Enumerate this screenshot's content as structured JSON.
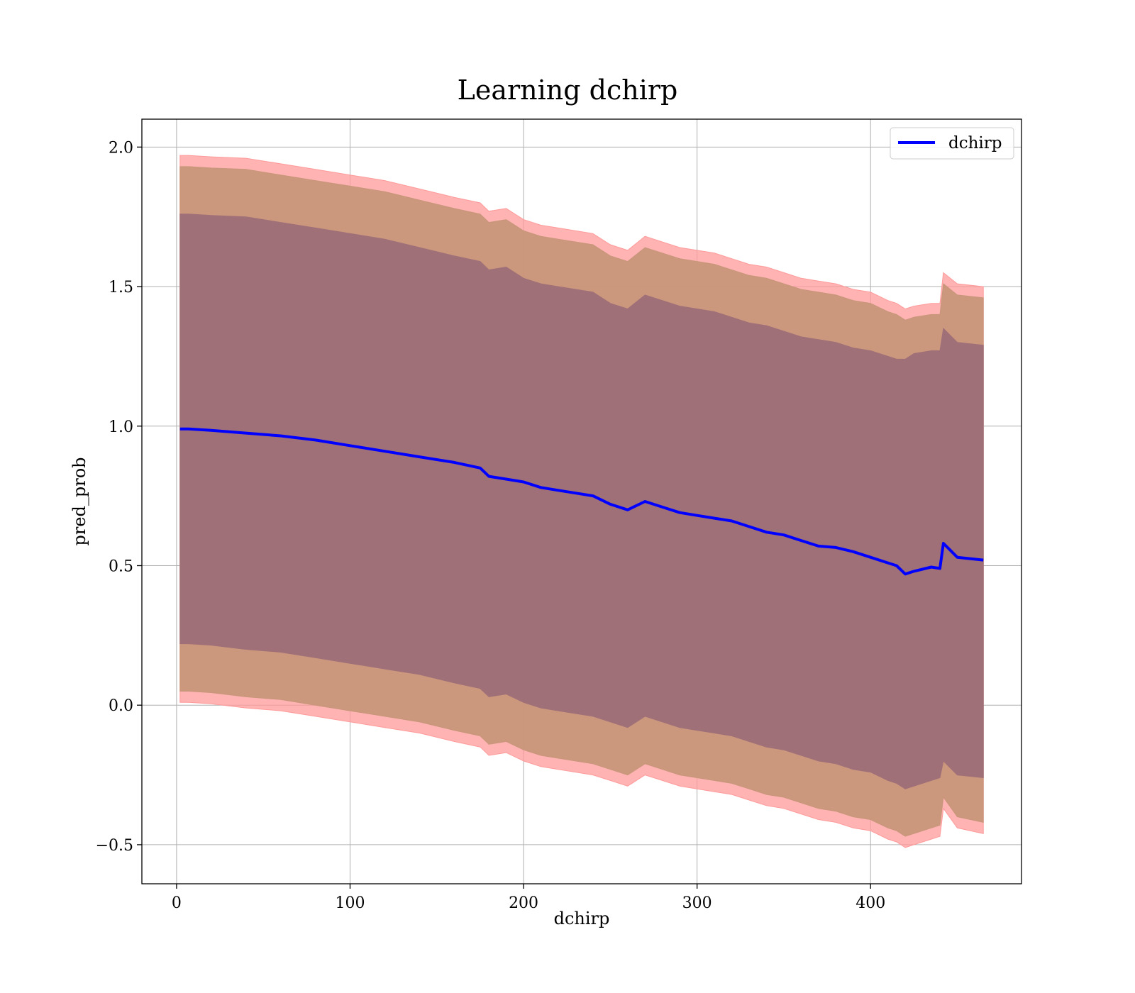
{
  "chart_data": {
    "type": "line",
    "title": "Learning dchirp",
    "xlabel": "dchirp",
    "ylabel": "pred_prob",
    "xlim": [
      -20,
      487
    ],
    "ylim": [
      -0.64,
      2.1
    ],
    "xticks": [
      0,
      100,
      200,
      300,
      400
    ],
    "xtick_labels": [
      "0",
      "100",
      "200",
      "300",
      "400"
    ],
    "yticks": [
      -0.5,
      0.0,
      0.5,
      1.0,
      1.5,
      2.0
    ],
    "ytick_labels": [
      "−0.5",
      "0.0",
      "0.5",
      "1.0",
      "1.5",
      "2.0"
    ],
    "grid": true,
    "legend": {
      "placement": "upper-right",
      "entries": [
        "dchirp"
      ]
    },
    "colors": {
      "line": "#0000ff",
      "band_outer": "#ff9a9a",
      "band_middle": "#c8967a",
      "band_inner": "#a07078"
    },
    "series": [
      {
        "name": "dchirp",
        "x": [
          2,
          7,
          20,
          40,
          60,
          80,
          100,
          120,
          140,
          160,
          175,
          180,
          190,
          200,
          210,
          220,
          230,
          240,
          250,
          260,
          270,
          280,
          290,
          300,
          310,
          320,
          330,
          340,
          350,
          360,
          370,
          380,
          390,
          400,
          410,
          415,
          420,
          425,
          435,
          440,
          442,
          450,
          465
        ],
        "y": [
          0.99,
          0.99,
          0.985,
          0.975,
          0.965,
          0.95,
          0.93,
          0.91,
          0.89,
          0.87,
          0.85,
          0.82,
          0.81,
          0.8,
          0.78,
          0.77,
          0.76,
          0.75,
          0.72,
          0.7,
          0.73,
          0.71,
          0.69,
          0.68,
          0.67,
          0.66,
          0.64,
          0.62,
          0.61,
          0.59,
          0.57,
          0.565,
          0.55,
          0.53,
          0.51,
          0.5,
          0.47,
          0.48,
          0.495,
          0.49,
          0.58,
          0.53,
          0.52
        ]
      }
    ],
    "bands": [
      {
        "name": "outer",
        "x": [
          2,
          7,
          20,
          40,
          60,
          80,
          100,
          120,
          140,
          160,
          175,
          180,
          190,
          200,
          210,
          220,
          230,
          240,
          250,
          260,
          270,
          280,
          290,
          300,
          310,
          320,
          330,
          340,
          350,
          360,
          370,
          380,
          390,
          400,
          410,
          415,
          420,
          425,
          435,
          440,
          442,
          450,
          465
        ],
        "upper": [
          1.97,
          1.97,
          1.965,
          1.96,
          1.94,
          1.92,
          1.9,
          1.88,
          1.85,
          1.82,
          1.8,
          1.77,
          1.78,
          1.74,
          1.72,
          1.71,
          1.7,
          1.69,
          1.65,
          1.63,
          1.68,
          1.66,
          1.64,
          1.63,
          1.62,
          1.6,
          1.58,
          1.57,
          1.55,
          1.53,
          1.52,
          1.51,
          1.49,
          1.48,
          1.45,
          1.44,
          1.42,
          1.43,
          1.44,
          1.44,
          1.55,
          1.51,
          1.5
        ],
        "lower": [
          0.01,
          0.01,
          0.005,
          -0.01,
          -0.02,
          -0.04,
          -0.06,
          -0.08,
          -0.1,
          -0.13,
          -0.15,
          -0.18,
          -0.17,
          -0.2,
          -0.22,
          -0.23,
          -0.24,
          -0.25,
          -0.27,
          -0.29,
          -0.25,
          -0.27,
          -0.29,
          -0.3,
          -0.31,
          -0.32,
          -0.34,
          -0.36,
          -0.37,
          -0.39,
          -0.41,
          -0.42,
          -0.44,
          -0.45,
          -0.48,
          -0.49,
          -0.51,
          -0.5,
          -0.48,
          -0.47,
          -0.37,
          -0.44,
          -0.46
        ]
      },
      {
        "name": "middle",
        "x": [
          2,
          7,
          20,
          40,
          60,
          80,
          100,
          120,
          140,
          160,
          175,
          180,
          190,
          200,
          210,
          220,
          230,
          240,
          250,
          260,
          270,
          280,
          290,
          300,
          310,
          320,
          330,
          340,
          350,
          360,
          370,
          380,
          390,
          400,
          410,
          415,
          420,
          425,
          435,
          440,
          442,
          450,
          465
        ],
        "upper": [
          1.93,
          1.93,
          1.925,
          1.92,
          1.9,
          1.88,
          1.86,
          1.84,
          1.81,
          1.78,
          1.76,
          1.73,
          1.74,
          1.7,
          1.68,
          1.67,
          1.66,
          1.65,
          1.61,
          1.59,
          1.64,
          1.62,
          1.6,
          1.59,
          1.58,
          1.56,
          1.54,
          1.53,
          1.51,
          1.49,
          1.48,
          1.47,
          1.45,
          1.44,
          1.41,
          1.4,
          1.38,
          1.39,
          1.4,
          1.4,
          1.51,
          1.47,
          1.46
        ],
        "lower": [
          0.05,
          0.05,
          0.045,
          0.03,
          0.02,
          0.0,
          -0.02,
          -0.04,
          -0.06,
          -0.09,
          -0.11,
          -0.14,
          -0.13,
          -0.16,
          -0.18,
          -0.19,
          -0.2,
          -0.21,
          -0.23,
          -0.25,
          -0.21,
          -0.23,
          -0.25,
          -0.26,
          -0.27,
          -0.28,
          -0.3,
          -0.32,
          -0.33,
          -0.35,
          -0.37,
          -0.38,
          -0.4,
          -0.41,
          -0.44,
          -0.45,
          -0.47,
          -0.46,
          -0.44,
          -0.43,
          -0.33,
          -0.4,
          -0.42
        ]
      },
      {
        "name": "inner",
        "x": [
          2,
          7,
          20,
          40,
          60,
          80,
          100,
          120,
          140,
          160,
          175,
          180,
          190,
          200,
          210,
          220,
          230,
          240,
          250,
          260,
          270,
          280,
          290,
          300,
          310,
          320,
          330,
          340,
          350,
          360,
          370,
          380,
          390,
          400,
          410,
          415,
          420,
          425,
          435,
          440,
          442,
          450,
          465
        ],
        "upper": [
          1.76,
          1.76,
          1.755,
          1.75,
          1.73,
          1.71,
          1.69,
          1.67,
          1.64,
          1.61,
          1.59,
          1.56,
          1.57,
          1.53,
          1.51,
          1.5,
          1.49,
          1.48,
          1.44,
          1.42,
          1.47,
          1.45,
          1.43,
          1.42,
          1.41,
          1.39,
          1.37,
          1.36,
          1.34,
          1.32,
          1.31,
          1.3,
          1.28,
          1.27,
          1.25,
          1.24,
          1.24,
          1.26,
          1.27,
          1.27,
          1.35,
          1.3,
          1.29
        ],
        "lower": [
          0.22,
          0.22,
          0.215,
          0.2,
          0.19,
          0.17,
          0.15,
          0.13,
          0.11,
          0.08,
          0.06,
          0.03,
          0.04,
          0.01,
          -0.01,
          -0.02,
          -0.03,
          -0.04,
          -0.06,
          -0.08,
          -0.04,
          -0.06,
          -0.08,
          -0.09,
          -0.1,
          -0.11,
          -0.13,
          -0.15,
          -0.16,
          -0.18,
          -0.2,
          -0.21,
          -0.23,
          -0.24,
          -0.27,
          -0.28,
          -0.3,
          -0.29,
          -0.27,
          -0.26,
          -0.2,
          -0.25,
          -0.26
        ]
      }
    ]
  }
}
